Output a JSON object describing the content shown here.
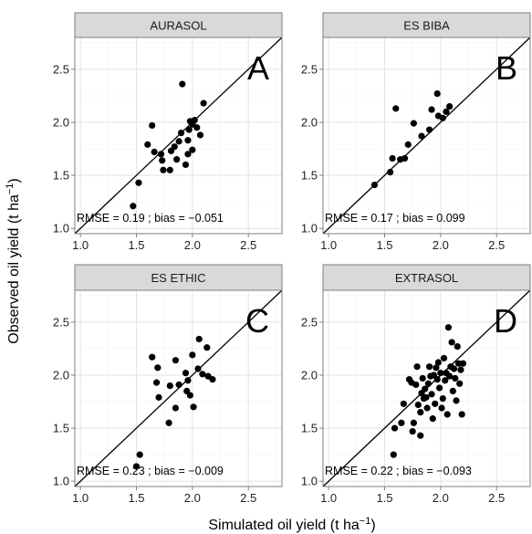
{
  "xlabel": "Simulated oil yield (t ha",
  "ylabel": "Observed oil yield (t ha",
  "unit_exponent": "−1",
  "chart_data": [
    {
      "type": "scatter",
      "title": "AURASOL",
      "letter": "A",
      "annotation": "RMSE = 0.19 ; bias = −0.051",
      "xlim": [
        0.95,
        2.8
      ],
      "ylim": [
        0.95,
        2.8
      ],
      "x_ticks": [
        1.0,
        1.5,
        2.0,
        2.5
      ],
      "y_ticks": [
        1.0,
        1.5,
        2.0,
        2.5
      ],
      "x_tick_labels": [
        "1.0",
        "1.5",
        "2.0",
        "2.5"
      ],
      "y_tick_labels": [
        "1.0",
        "1.5",
        "2.0",
        "2.5"
      ],
      "reference_line": "1:1",
      "grid": true,
      "points": [
        [
          1.47,
          1.21
        ],
        [
          1.52,
          1.43
        ],
        [
          1.6,
          1.79
        ],
        [
          1.64,
          1.97
        ],
        [
          1.66,
          1.72
        ],
        [
          1.72,
          1.7
        ],
        [
          1.73,
          1.64
        ],
        [
          1.74,
          1.55
        ],
        [
          1.8,
          1.55
        ],
        [
          1.81,
          1.73
        ],
        [
          1.84,
          1.77
        ],
        [
          1.86,
          1.65
        ],
        [
          1.88,
          1.82
        ],
        [
          1.9,
          1.9
        ],
        [
          1.91,
          2.36
        ],
        [
          1.94,
          1.6
        ],
        [
          1.96,
          1.7
        ],
        [
          1.96,
          1.83
        ],
        [
          1.97,
          1.93
        ],
        [
          1.98,
          2.01
        ],
        [
          2.0,
          1.74
        ],
        [
          2.0,
          1.98
        ],
        [
          2.02,
          2.02
        ],
        [
          2.04,
          1.95
        ],
        [
          2.07,
          1.88
        ],
        [
          2.1,
          2.18
        ]
      ]
    },
    {
      "type": "scatter",
      "title": "ES BIBA",
      "letter": "B",
      "annotation": "RMSE = 0.17 ; bias = 0.099",
      "xlim": [
        0.95,
        2.8
      ],
      "ylim": [
        0.95,
        2.8
      ],
      "x_ticks": [
        1.0,
        1.5,
        2.0,
        2.5
      ],
      "y_ticks": [
        1.0,
        1.5,
        2.0,
        2.5
      ],
      "x_tick_labels": [
        "1.0",
        "1.5",
        "2.0",
        "2.5"
      ],
      "y_tick_labels": [
        "1.0",
        "1.5",
        "2.0",
        "2.5"
      ],
      "reference_line": "1:1",
      "grid": true,
      "points": [
        [
          1.41,
          1.41
        ],
        [
          1.55,
          1.53
        ],
        [
          1.57,
          1.66
        ],
        [
          1.6,
          2.13
        ],
        [
          1.64,
          1.65
        ],
        [
          1.68,
          1.66
        ],
        [
          1.71,
          1.79
        ],
        [
          1.76,
          1.99
        ],
        [
          1.83,
          1.87
        ],
        [
          1.9,
          1.93
        ],
        [
          1.92,
          2.12
        ],
        [
          1.97,
          2.27
        ],
        [
          1.98,
          2.06
        ],
        [
          2.02,
          2.04
        ],
        [
          2.05,
          2.1
        ],
        [
          2.08,
          2.15
        ]
      ]
    },
    {
      "type": "scatter",
      "title": "ES ETHIC",
      "letter": "C",
      "annotation": "RMSE = 0.23 ; bias = −0.009",
      "xlim": [
        0.95,
        2.8
      ],
      "ylim": [
        0.95,
        2.8
      ],
      "x_ticks": [
        1.0,
        1.5,
        2.0,
        2.5
      ],
      "y_ticks": [
        1.0,
        1.5,
        2.0,
        2.5
      ],
      "x_tick_labels": [
        "1.0",
        "1.5",
        "2.0",
        "2.5"
      ],
      "y_tick_labels": [
        "1.0",
        "1.5",
        "2.0",
        "2.5"
      ],
      "reference_line": "1:1",
      "grid": true,
      "points": [
        [
          1.5,
          1.14
        ],
        [
          1.53,
          1.25
        ],
        [
          1.64,
          2.17
        ],
        [
          1.68,
          1.93
        ],
        [
          1.69,
          2.07
        ],
        [
          1.7,
          1.79
        ],
        [
          1.79,
          1.55
        ],
        [
          1.8,
          1.9
        ],
        [
          1.85,
          2.14
        ],
        [
          1.85,
          1.69
        ],
        [
          1.88,
          1.91
        ],
        [
          1.94,
          2.02
        ],
        [
          1.95,
          1.85
        ],
        [
          1.96,
          1.95
        ],
        [
          1.98,
          1.81
        ],
        [
          2.0,
          2.19
        ],
        [
          2.01,
          1.7
        ],
        [
          2.05,
          2.06
        ],
        [
          2.06,
          2.34
        ],
        [
          2.09,
          2.01
        ],
        [
          2.13,
          2.26
        ],
        [
          2.14,
          1.99
        ],
        [
          2.18,
          1.96
        ]
      ]
    },
    {
      "type": "scatter",
      "title": "EXTRASOL",
      "letter": "D",
      "annotation": "RMSE = 0.22 ; bias = −0.093",
      "xlim": [
        0.95,
        2.8
      ],
      "ylim": [
        0.95,
        2.8
      ],
      "x_ticks": [
        1.0,
        1.5,
        2.0,
        2.5
      ],
      "y_ticks": [
        1.0,
        1.5,
        2.0,
        2.5
      ],
      "x_tick_labels": [
        "1.0",
        "1.5",
        "2.0",
        "2.5"
      ],
      "y_tick_labels": [
        "1.0",
        "1.5",
        "2.0",
        "2.5"
      ],
      "reference_line": "1:1",
      "grid": true,
      "points": [
        [
          1.58,
          1.25
        ],
        [
          1.59,
          1.5
        ],
        [
          1.65,
          1.55
        ],
        [
          1.67,
          1.73
        ],
        [
          1.72,
          1.96
        ],
        [
          1.74,
          1.93
        ],
        [
          1.75,
          1.47
        ],
        [
          1.76,
          1.55
        ],
        [
          1.78,
          1.91
        ],
        [
          1.79,
          2.08
        ],
        [
          1.8,
          1.72
        ],
        [
          1.82,
          1.65
        ],
        [
          1.82,
          1.43
        ],
        [
          1.83,
          1.83
        ],
        [
          1.84,
          1.97
        ],
        [
          1.85,
          1.78
        ],
        [
          1.86,
          1.87
        ],
        [
          1.87,
          1.79
        ],
        [
          1.88,
          1.69
        ],
        [
          1.89,
          1.92
        ],
        [
          1.9,
          2.08
        ],
        [
          1.91,
          1.99
        ],
        [
          1.92,
          1.82
        ],
        [
          1.93,
          1.59
        ],
        [
          1.94,
          2.0
        ],
        [
          1.95,
          1.73
        ],
        [
          1.96,
          2.07
        ],
        [
          1.97,
          1.96
        ],
        [
          1.98,
          2.12
        ],
        [
          1.99,
          1.88
        ],
        [
          2.0,
          2.02
        ],
        [
          2.01,
          1.69
        ],
        [
          2.02,
          1.78
        ],
        [
          2.03,
          2.16
        ],
        [
          2.04,
          1.95
        ],
        [
          2.05,
          2.02
        ],
        [
          2.06,
          1.63
        ],
        [
          2.07,
          2.45
        ],
        [
          2.08,
          1.99
        ],
        [
          2.09,
          2.08
        ],
        [
          2.1,
          2.31
        ],
        [
          2.11,
          1.85
        ],
        [
          2.12,
          2.06
        ],
        [
          2.13,
          1.97
        ],
        [
          2.14,
          1.76
        ],
        [
          2.15,
          2.27
        ],
        [
          2.16,
          2.11
        ],
        [
          2.17,
          1.92
        ],
        [
          2.18,
          2.05
        ],
        [
          2.19,
          1.63
        ],
        [
          2.2,
          2.11
        ]
      ]
    }
  ]
}
